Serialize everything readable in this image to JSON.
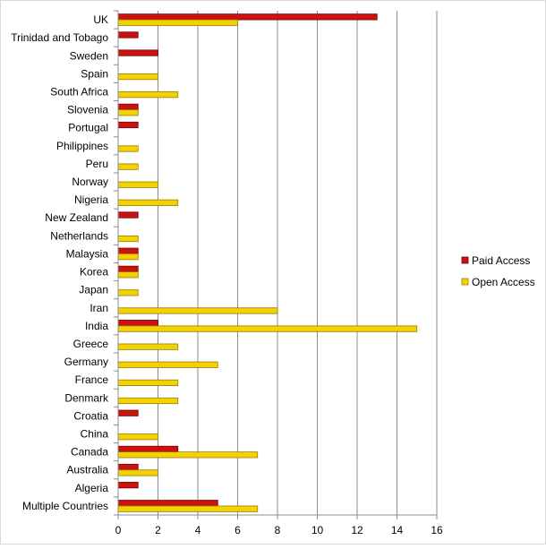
{
  "chart_data": {
    "type": "bar",
    "orientation": "horizontal",
    "categories": [
      "UK",
      "Trinidad and Tobago",
      "Sweden",
      "Spain",
      "South Africa",
      "Slovenia",
      "Portugal",
      "Philippines",
      "Peru",
      "Norway",
      "Nigeria",
      "New Zealand",
      "Netherlands",
      "Malaysia",
      "Korea",
      "Japan",
      "Iran",
      "India",
      "Greece",
      "Germany",
      "France",
      "Denmark",
      "Croatia",
      "China",
      "Canada",
      "Australia",
      "Algeria",
      "Multiple Countries"
    ],
    "series": [
      {
        "name": "Paid Access",
        "color": "#cc1111",
        "values": [
          13,
          1,
          2,
          0,
          0,
          1,
          1,
          0,
          0,
          0,
          0,
          1,
          0,
          1,
          1,
          0,
          0,
          2,
          0,
          0,
          0,
          0,
          1,
          0,
          3,
          1,
          1,
          5
        ]
      },
      {
        "name": "Open Access",
        "color": "#f2d200",
        "values": [
          6,
          0,
          0,
          2,
          3,
          1,
          0,
          1,
          1,
          2,
          3,
          0,
          1,
          1,
          1,
          1,
          8,
          15,
          3,
          5,
          3,
          3,
          0,
          2,
          7,
          2,
          0,
          7
        ]
      }
    ],
    "xlim": [
      0,
      16
    ],
    "xticks": [
      0,
      2,
      4,
      6,
      8,
      10,
      12,
      14,
      16
    ],
    "grid": "vertical",
    "legend_position": "right",
    "title": "",
    "xlabel": "",
    "ylabel": ""
  }
}
